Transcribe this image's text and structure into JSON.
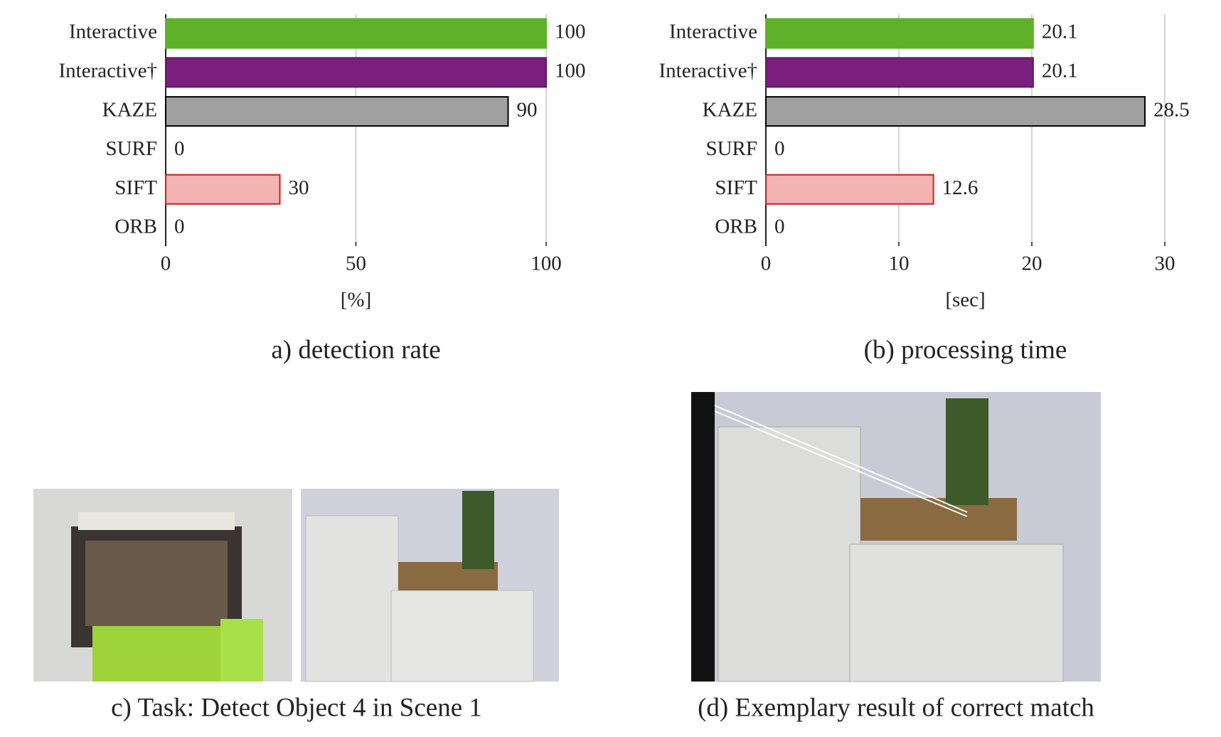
{
  "chart_data": [
    {
      "type": "barh",
      "caption": "a) detection rate",
      "xlabel": "[%]",
      "categories": [
        "Interactive",
        "Interactive†",
        "KAZE",
        "SURF",
        "SIFT",
        "ORB"
      ],
      "values": [
        100,
        100,
        90,
        0,
        30,
        0
      ],
      "colors": [
        "#5fb12a",
        "#7a1f7e",
        "#a0a0a0",
        "#ffffff",
        "#f2b3b3",
        "#ffffff"
      ],
      "edge_colors": [
        "#5fb12a",
        "#5e1a63",
        "#000000",
        "#8a4a25",
        "#cc1f1f",
        "#2b4f9a"
      ],
      "xlim": [
        0,
        100
      ],
      "xticks": [
        0,
        50,
        100
      ],
      "grid": true
    },
    {
      "type": "barh",
      "caption": "(b) processing time",
      "xlabel": "[sec]",
      "categories": [
        "Interactive",
        "Interactive†",
        "KAZE",
        "SURF",
        "SIFT",
        "ORB"
      ],
      "values": [
        20.1,
        20.1,
        28.5,
        0,
        12.6,
        0
      ],
      "colors": [
        "#5fb12a",
        "#7a1f7e",
        "#a0a0a0",
        "#ffffff",
        "#f2b3b3",
        "#ffffff"
      ],
      "edge_colors": [
        "#5fb12a",
        "#5e1a63",
        "#000000",
        "#8a4a25",
        "#cc1f1f",
        "#2b4f9a"
      ],
      "xlim": [
        0,
        30
      ],
      "xticks": [
        0,
        10,
        20,
        30
      ],
      "grid": true
    }
  ],
  "figures": {
    "c_caption": "c) Task: Detect Object 4 in Scene 1",
    "d_caption": "(d) Exemplary result of correct match"
  }
}
